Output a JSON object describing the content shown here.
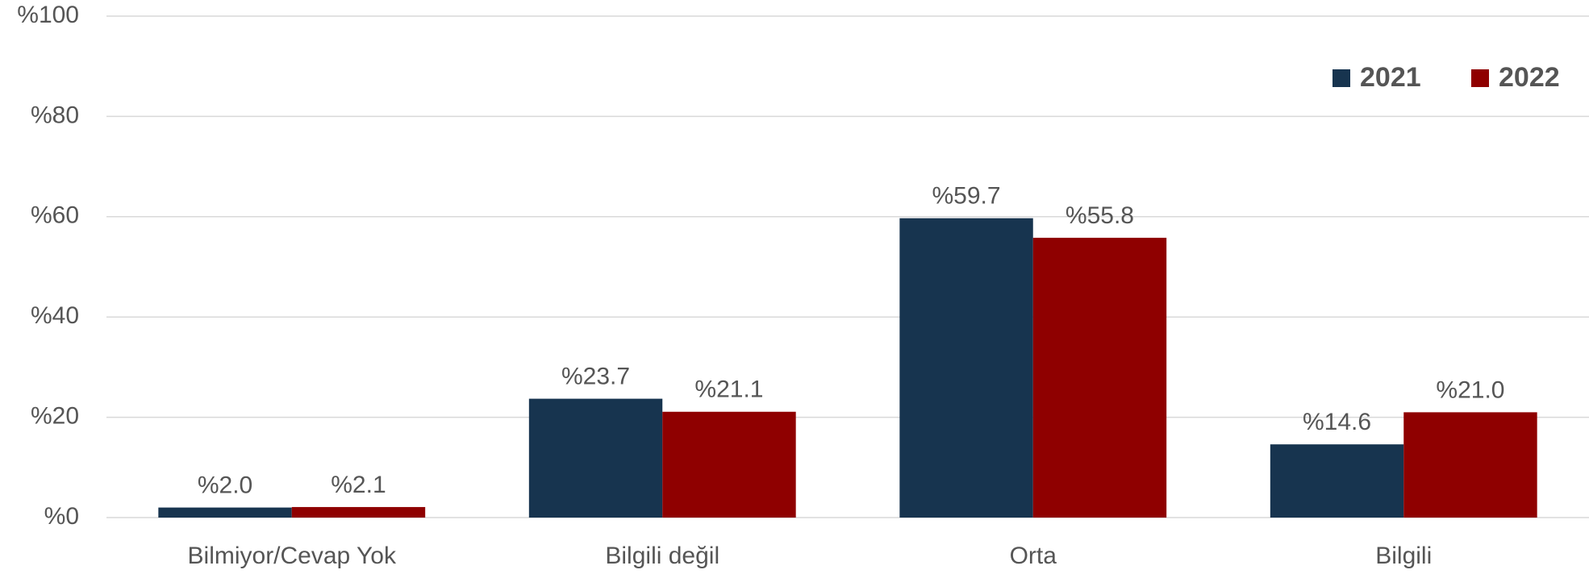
{
  "chart_data": {
    "type": "bar",
    "categories": [
      "Bilmiyor/Cevap Yok",
      "Bilgili değil",
      "Orta",
      "Bilgili"
    ],
    "series": [
      {
        "name": "2021",
        "color": "#17344f",
        "values": [
          2.0,
          23.7,
          59.7,
          14.6
        ],
        "value_labels": [
          "%2.0",
          "%23.7",
          "%59.7",
          "%14.6"
        ]
      },
      {
        "name": "2022",
        "color": "#8f0000",
        "values": [
          2.1,
          21.1,
          55.8,
          21.0
        ],
        "value_labels": [
          "%2.1",
          "%21.1",
          "%55.8",
          "%21.0"
        ]
      }
    ],
    "ylim": [
      0,
      100
    ],
    "yticks": [
      {
        "value": 0,
        "label": "%0"
      },
      {
        "value": 20,
        "label": "%20"
      },
      {
        "value": 40,
        "label": "%40"
      },
      {
        "value": 60,
        "label": "%60"
      },
      {
        "value": 80,
        "label": "%80"
      },
      {
        "value": 100,
        "label": "%100"
      }
    ],
    "grid": true,
    "legend": "top-right"
  }
}
